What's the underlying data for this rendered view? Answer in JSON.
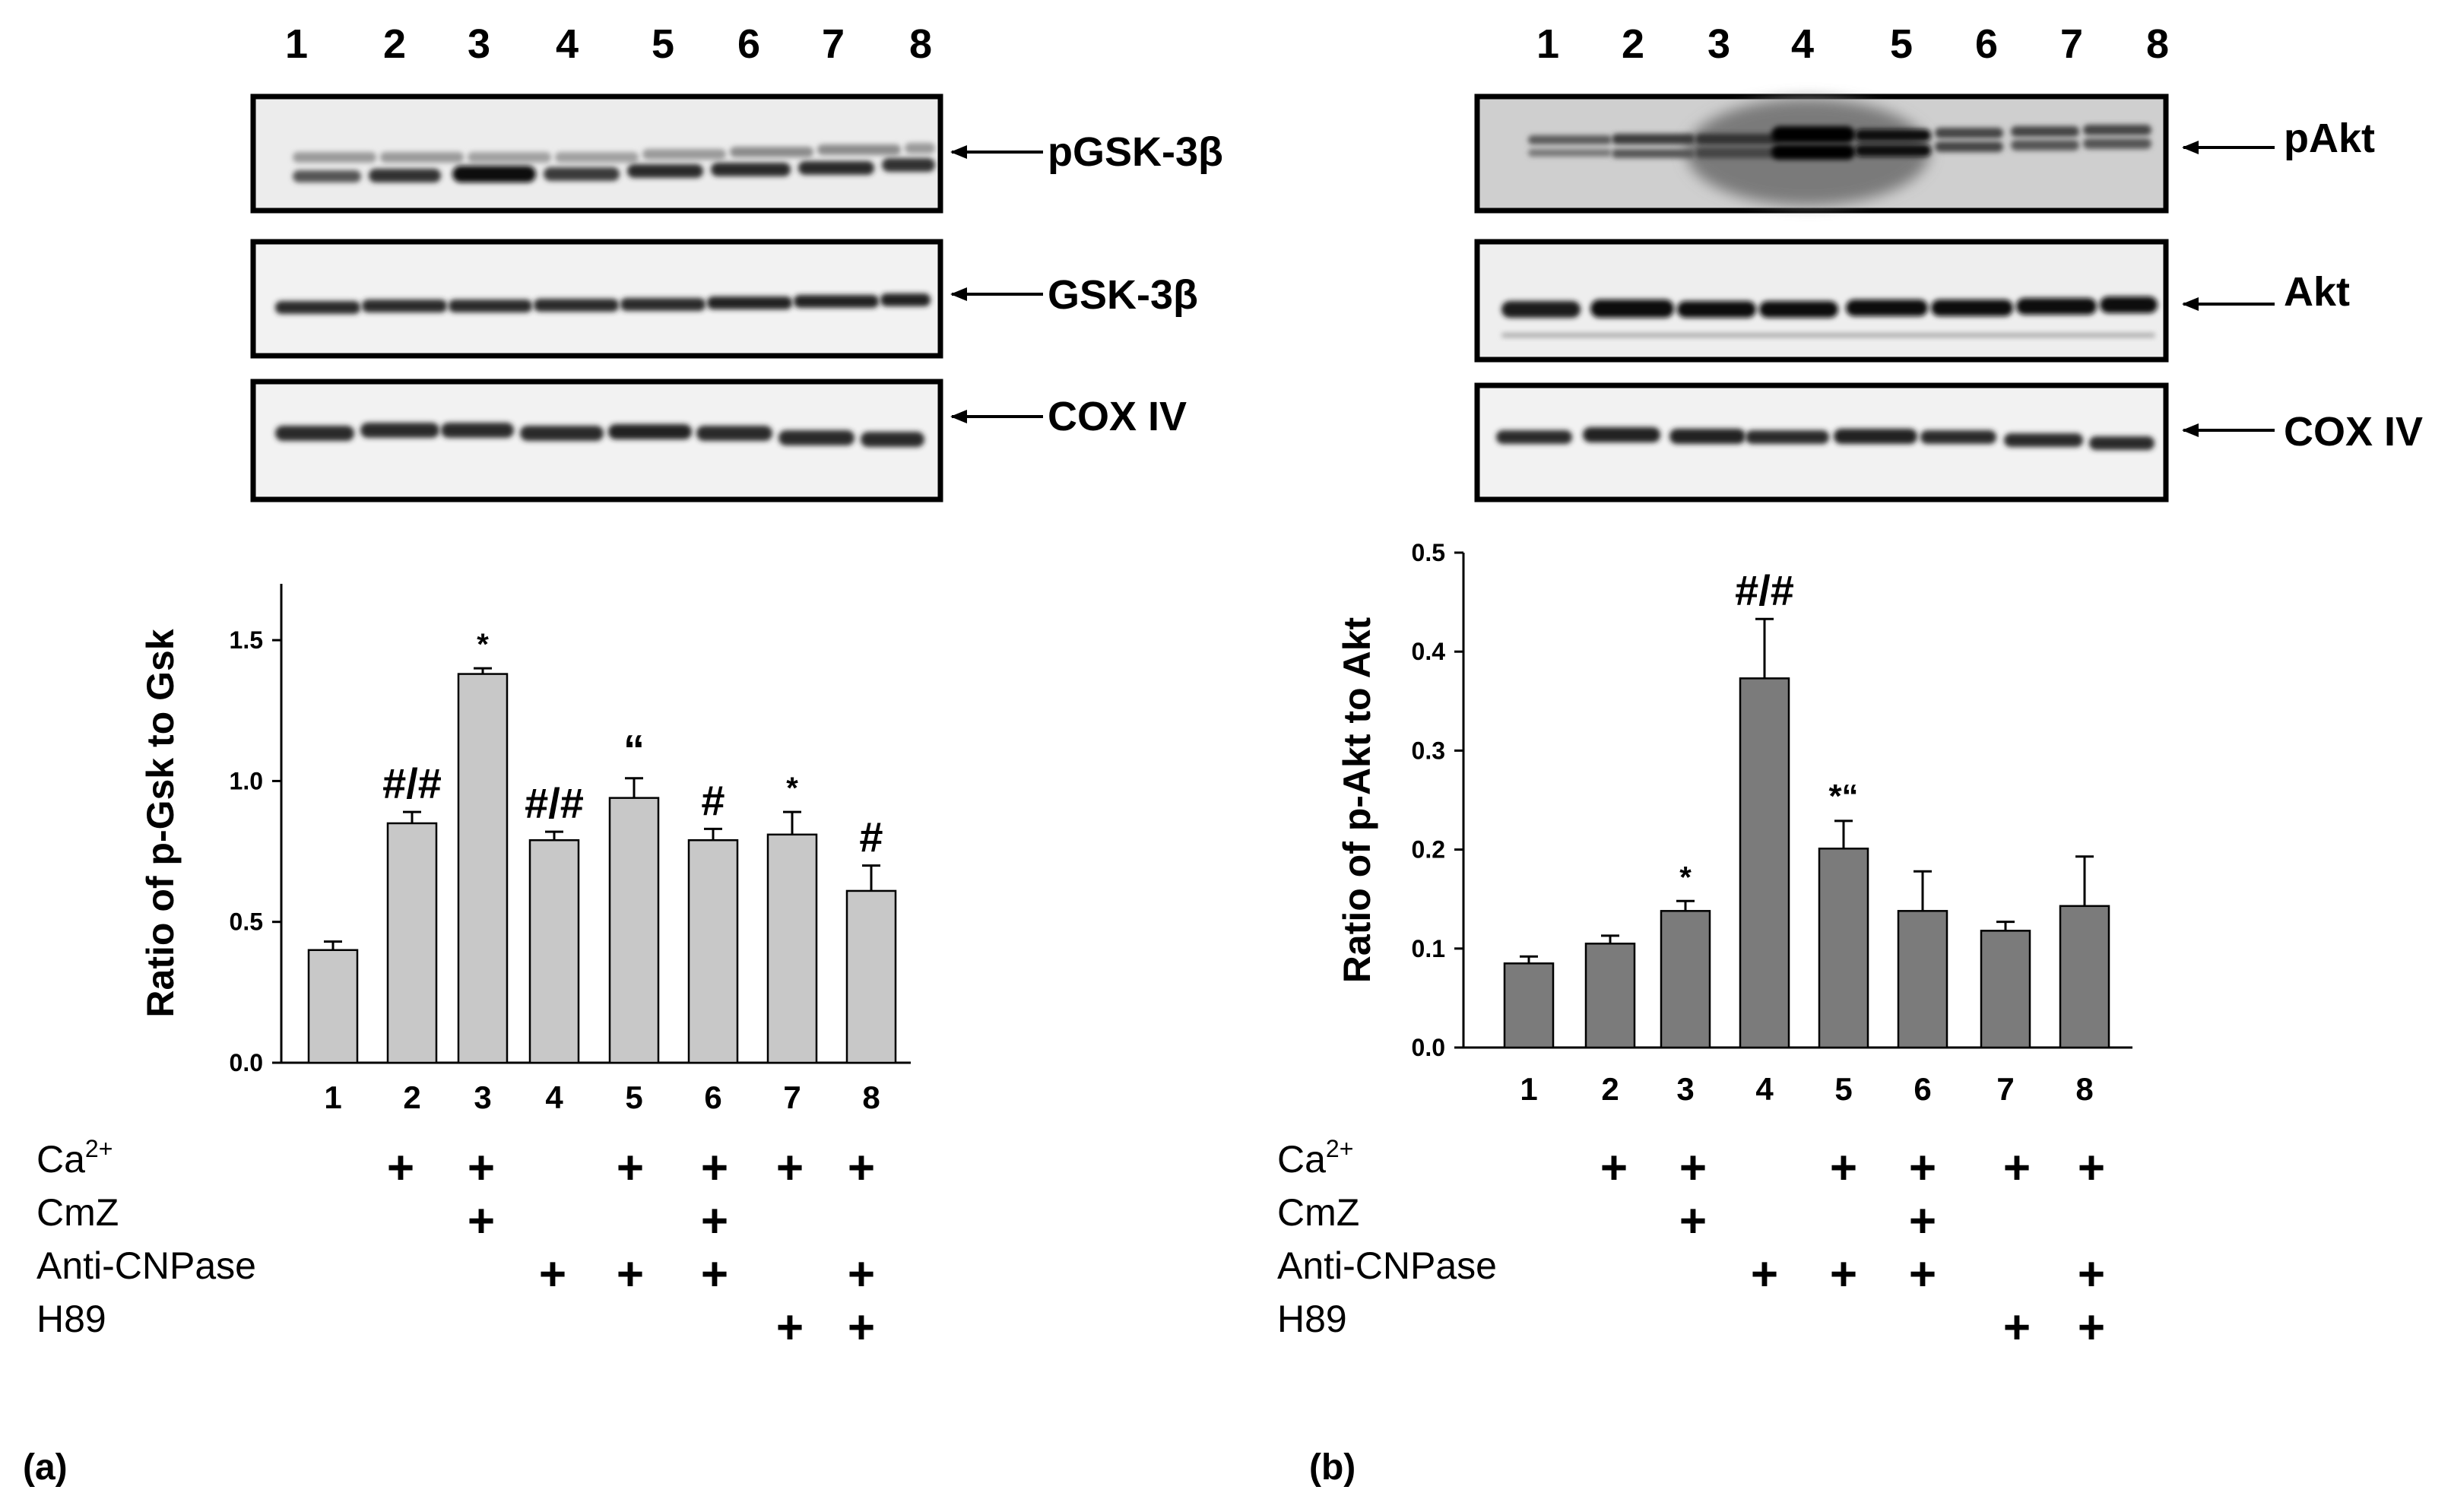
{
  "panels": [
    {
      "panel_label": "(a)",
      "lanes": [
        "1",
        "2",
        "3",
        "4",
        "5",
        "6",
        "7",
        "8"
      ],
      "blots": [
        {
          "label": "pGSK-3β",
          "bands": "pgsk"
        },
        {
          "label": "GSK-3β",
          "bands": "total"
        },
        {
          "label": "COX IV",
          "bands": "cox"
        }
      ],
      "treatments": [
        {
          "label": "Ca",
          "superscript": "2+",
          "marks": [
            false,
            true,
            true,
            false,
            true,
            true,
            true,
            true
          ]
        },
        {
          "label": "CmZ",
          "superscript": "",
          "marks": [
            false,
            false,
            true,
            false,
            false,
            true,
            false,
            false
          ]
        },
        {
          "label": "Anti-CNPase",
          "superscript": "",
          "marks": [
            false,
            false,
            false,
            true,
            true,
            true,
            false,
            true
          ]
        },
        {
          "label": "H89",
          "superscript": "",
          "marks": [
            false,
            false,
            false,
            false,
            false,
            false,
            true,
            true
          ]
        }
      ]
    },
    {
      "panel_label": "(b)",
      "lanes": [
        "1",
        "2",
        "3",
        "4",
        "5",
        "6",
        "7",
        "8"
      ],
      "blots": [
        {
          "label": "pAkt",
          "bands": "pakt"
        },
        {
          "label": "Akt",
          "bands": "total"
        },
        {
          "label": "COX IV",
          "bands": "cox"
        }
      ],
      "treatments": [
        {
          "label": "Ca",
          "superscript": "2+",
          "marks": [
            false,
            true,
            true,
            false,
            true,
            true,
            true,
            true
          ]
        },
        {
          "label": "CmZ",
          "superscript": "",
          "marks": [
            false,
            false,
            true,
            false,
            false,
            true,
            false,
            false
          ]
        },
        {
          "label": "Anti-CNPase",
          "superscript": "",
          "marks": [
            false,
            false,
            false,
            true,
            true,
            true,
            false,
            true
          ]
        },
        {
          "label": "H89",
          "superscript": "",
          "marks": [
            false,
            false,
            false,
            false,
            false,
            false,
            true,
            true
          ]
        }
      ]
    }
  ],
  "plus_symbol": "+",
  "chart_data": [
    {
      "type": "bar",
      "title": "",
      "xlabel": "",
      "ylabel": "Ratio of p-Gsk to Gsk",
      "categories": [
        "1",
        "2",
        "3",
        "4",
        "5",
        "6",
        "7",
        "8"
      ],
      "values": [
        0.4,
        0.85,
        1.38,
        0.79,
        0.94,
        0.79,
        0.81,
        0.61
      ],
      "errors": [
        0.03,
        0.04,
        0.02,
        0.03,
        0.07,
        0.04,
        0.08,
        0.09
      ],
      "annotations": [
        "",
        "#/#",
        "*",
        "#/#",
        "“",
        "#",
        "*",
        "#"
      ],
      "ylim": [
        0,
        1.7
      ],
      "yticks": [
        0.0,
        0.5,
        1.0,
        1.5
      ],
      "ytick_labels": [
        "0.0",
        "0.5",
        "1.0",
        "1.5"
      ],
      "bar_color": "#c8c8c8",
      "grid": false
    },
    {
      "type": "bar",
      "title": "",
      "xlabel": "",
      "ylabel": "Ratio of p-Akt to Akt",
      "categories": [
        "1",
        "2",
        "3",
        "4",
        "5",
        "6",
        "7",
        "8"
      ],
      "values": [
        0.085,
        0.105,
        0.138,
        0.373,
        0.201,
        0.138,
        0.118,
        0.143
      ],
      "errors": [
        0.007,
        0.008,
        0.01,
        0.06,
        0.028,
        0.04,
        0.009,
        0.05
      ],
      "annotations": [
        "",
        "",
        "*",
        "#/#",
        "*“",
        "",
        "",
        ""
      ],
      "ylim": [
        0,
        0.5
      ],
      "yticks": [
        0.0,
        0.1,
        0.2,
        0.3,
        0.4,
        0.5
      ],
      "ytick_labels": [
        "0.0",
        "0.1",
        "0.2",
        "0.3",
        "0.4",
        "0.5"
      ],
      "bar_color": "#7b7b7b",
      "grid": false
    }
  ]
}
